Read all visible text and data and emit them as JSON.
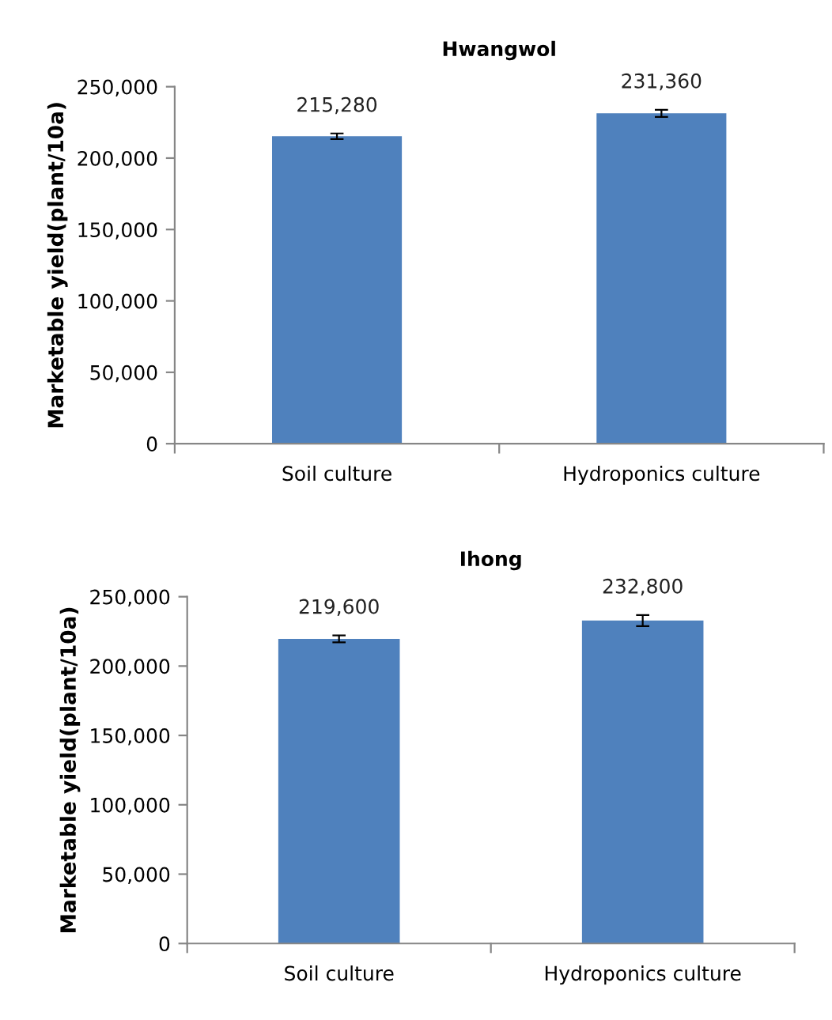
{
  "chart_data": [
    {
      "type": "bar",
      "title": "Hwangwol",
      "ylabel": "Marketable yield(plant/10a)",
      "categories": [
        "Soil culture",
        "Hydroponics culture"
      ],
      "values": [
        215280,
        231360
      ],
      "errors": [
        2000,
        2500
      ],
      "value_labels": [
        "215,280",
        "231,360"
      ],
      "color": "#4f81bd",
      "ylim": [
        0,
        250000
      ],
      "yticks": [
        {
          "value": 0,
          "label": "0"
        },
        {
          "value": 50000,
          "label": "50,000"
        },
        {
          "value": 100000,
          "label": "100,000"
        },
        {
          "value": 150000,
          "label": "150,000"
        },
        {
          "value": 200000,
          "label": "200,000"
        },
        {
          "value": 250000,
          "label": "250,000"
        }
      ],
      "grid": false,
      "legend": false
    },
    {
      "type": "bar",
      "title": "Ihong",
      "ylabel": "Marketable yield(plant/10a)",
      "categories": [
        "Soil culture",
        "Hydroponics culture"
      ],
      "values": [
        219600,
        232800
      ],
      "errors": [
        2500,
        4000
      ],
      "value_labels": [
        "219,600",
        "232,800"
      ],
      "color": "#4f81bd",
      "ylim": [
        0,
        250000
      ],
      "yticks": [
        {
          "value": 0,
          "label": "0"
        },
        {
          "value": 50000,
          "label": "50,000"
        },
        {
          "value": 100000,
          "label": "100,000"
        },
        {
          "value": 150000,
          "label": "150,000"
        },
        {
          "value": 200000,
          "label": "200,000"
        },
        {
          "value": 250000,
          "label": "250,000"
        }
      ],
      "grid": false,
      "legend": false
    }
  ]
}
